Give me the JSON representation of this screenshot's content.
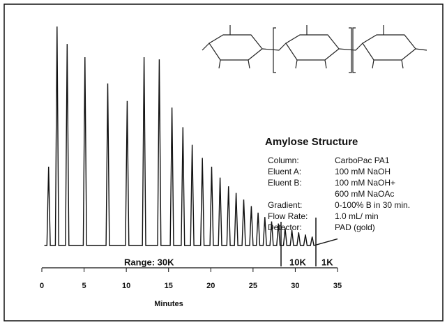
{
  "chart_data": {
    "type": "line",
    "x_label": "Minutes",
    "xlim": [
      0,
      35
    ],
    "xticks": [
      0,
      5,
      10,
      15,
      20,
      25,
      30,
      35
    ],
    "ylim": [
      0,
      100
    ],
    "color": "#111111",
    "x": [
      0.3,
      0.6,
      0.8,
      1.0,
      1.6,
      1.8,
      2.0,
      2.8,
      3.0,
      3.2,
      4.9,
      5.1,
      5.3,
      7.6,
      7.8,
      8.0,
      9.9,
      10.1,
      10.3,
      11.9,
      12.1,
      12.3,
      13.7,
      13.9,
      14.1,
      15.2,
      15.4,
      15.6,
      16.5,
      16.7,
      16.9,
      17.6,
      17.8,
      18.0,
      18.8,
      19.0,
      19.2,
      19.9,
      20.1,
      20.3,
      20.9,
      21.1,
      21.3,
      21.9,
      22.1,
      22.3,
      22.8,
      23.0,
      23.2,
      23.7,
      23.9,
      24.1,
      24.6,
      24.8,
      25.0,
      25.4,
      25.6,
      25.8,
      26.2,
      26.4,
      26.6,
      27.0,
      27.2,
      27.4,
      27.8,
      28.0,
      28.2,
      28.6,
      28.8,
      29.0,
      29.4,
      29.6,
      29.8,
      30.2,
      30.4,
      30.6,
      31.0,
      31.2,
      31.4,
      31.8,
      32.0,
      32.2,
      35.0
    ],
    "values": [
      0,
      0,
      36,
      0,
      0,
      100,
      0,
      0,
      92,
      0,
      0,
      86,
      0,
      0,
      74,
      0,
      0,
      66,
      0,
      0,
      86,
      0,
      0,
      85,
      0,
      0,
      63,
      0,
      0,
      54,
      0,
      0,
      46,
      0,
      0,
      40,
      0,
      0,
      36,
      0,
      0,
      31,
      0,
      0,
      27,
      0,
      0,
      24,
      0,
      0,
      21,
      0,
      0,
      18,
      0,
      0,
      15,
      0,
      0,
      13,
      0,
      0,
      11,
      0,
      0,
      10,
      0,
      0,
      8,
      0,
      0,
      7,
      0,
      0,
      6,
      0,
      0,
      5,
      0,
      0,
      4,
      0,
      3
    ],
    "annotations": [
      "Range: 30K",
      "10K",
      "1K"
    ],
    "panel": {
      "heading": "Amylose Structure",
      "rows": [
        {
          "label": "Column:",
          "value": [
            "CarboPac PA1"
          ]
        },
        {
          "label": "Eluent A:",
          "value": [
            "100 mM NaOH"
          ]
        },
        {
          "label": "Eluent B:",
          "value": [
            "100 mM NaOH+",
            "600 mM NaOAc"
          ]
        },
        {
          "label": "Gradient:",
          "value": [
            "0-100% B in 30 min."
          ]
        },
        {
          "label": "Flow Rate:",
          "value": [
            "1.0 mL/ min"
          ]
        },
        {
          "label": "Detector:",
          "value": [
            "PAD (gold)"
          ]
        }
      ]
    }
  }
}
